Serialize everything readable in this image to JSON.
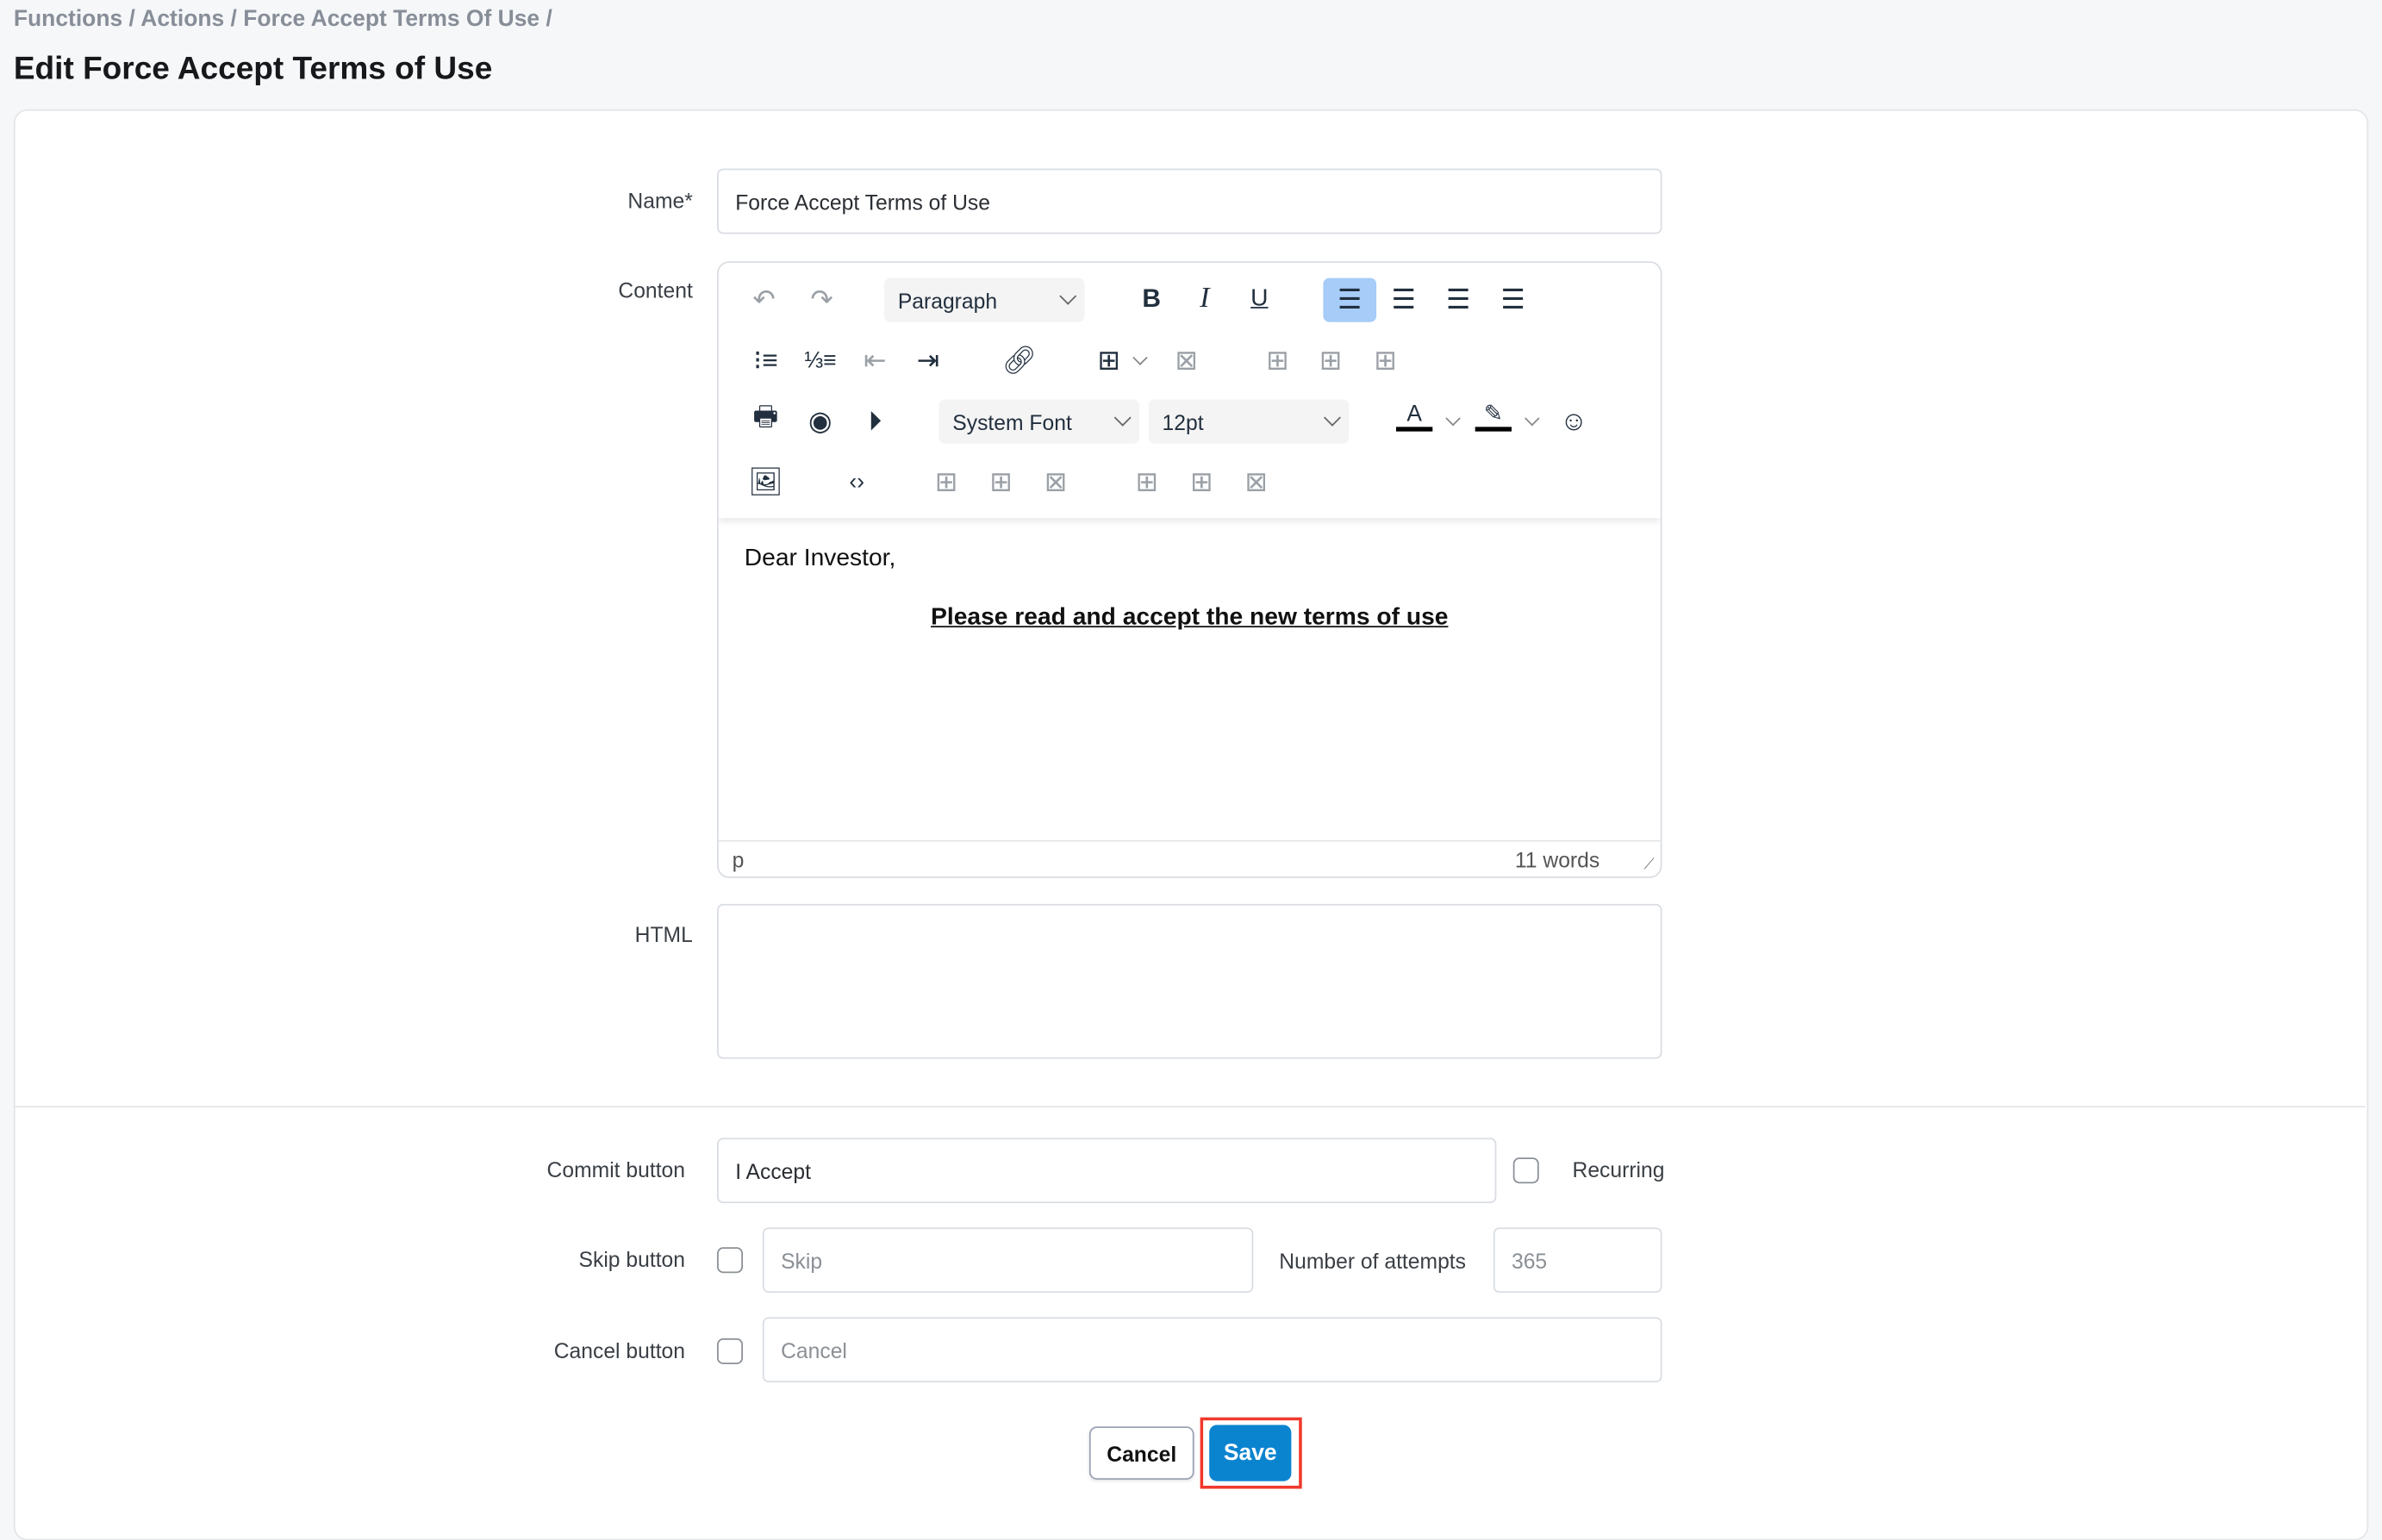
{
  "breadcrumb": "Functions / Actions / Force Accept Terms Of Use /",
  "page_title": "Edit Force Accept Terms of Use",
  "form": {
    "name_label": "Name*",
    "name_value": "Force Accept Terms of Use",
    "content_label": "Content",
    "html_label": "HTML",
    "html_value": "",
    "commit_label": "Commit button",
    "commit_value": "I Accept",
    "recurring_label": "Recurring",
    "recurring_checked": false,
    "skip_label": "Skip button",
    "skip_checked": false,
    "skip_placeholder": "Skip",
    "attempts_label": "Number of attempts",
    "attempts_placeholder": "365",
    "cancel_label": "Cancel button",
    "cancel_checked": false,
    "cancel_placeholder": "Cancel"
  },
  "editor": {
    "block_format": "Paragraph",
    "font_family": "System Font",
    "font_size": "12pt",
    "body_line1": "Dear Investor,",
    "body_line2": "Please read and accept the new terms of use",
    "status_path": "p",
    "word_count": "11 words",
    "active_alignment": "left",
    "highlight_color": "#a6ccf7"
  },
  "actions": {
    "cancel": "Cancel",
    "save": "Save",
    "save_color": "#0b84d0",
    "highlight_outline": "#f0392b"
  }
}
